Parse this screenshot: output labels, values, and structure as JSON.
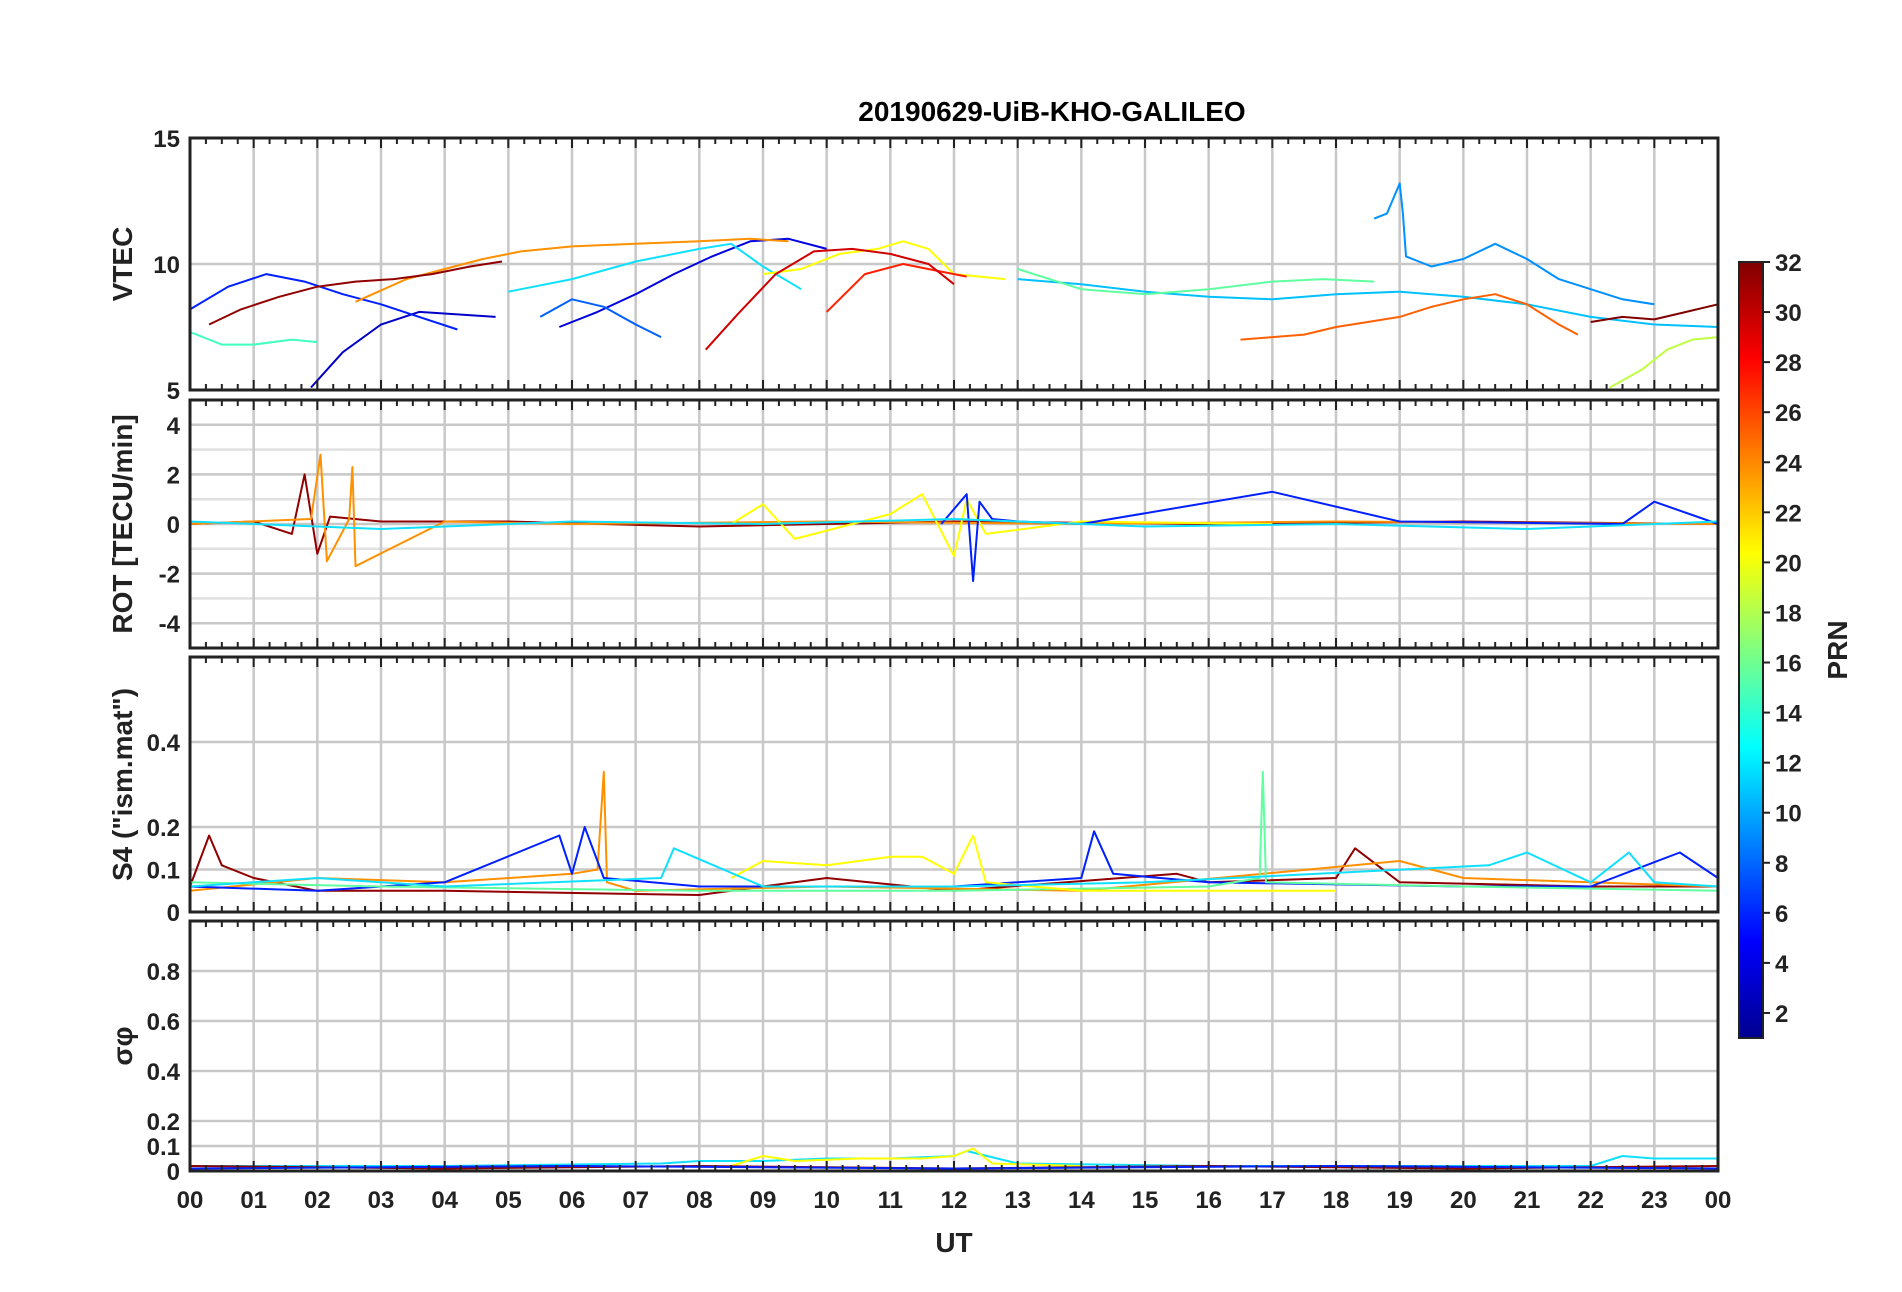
{
  "chart_data": {
    "type": "line",
    "title": "20190629-UiB-KHO-GALILEO",
    "xlabel": "UT",
    "x_tick_labels": [
      "00",
      "01",
      "02",
      "03",
      "04",
      "05",
      "06",
      "07",
      "08",
      "09",
      "10",
      "11",
      "12",
      "13",
      "14",
      "15",
      "16",
      "17",
      "18",
      "19",
      "20",
      "21",
      "22",
      "23",
      "00"
    ],
    "xlim_hours": [
      0,
      24
    ],
    "grid": true,
    "colorbar": {
      "label": "PRN",
      "colormap": "jet",
      "range": [
        1,
        32
      ],
      "tick_labels": [
        "2",
        "4",
        "6",
        "8",
        "10",
        "12",
        "14",
        "16",
        "18",
        "20",
        "22",
        "24",
        "26",
        "28",
        "30",
        "32"
      ],
      "colors": [
        "#00008f",
        "#0000ff",
        "#0080ff",
        "#00ffff",
        "#80ff80",
        "#ffff00",
        "#ff8000",
        "#ff0000",
        "#800000"
      ]
    },
    "panels": [
      {
        "ylabel": "VTEC",
        "ylim": [
          5,
          15
        ],
        "y_tick_labels": [
          "5",
          "10",
          "15"
        ],
        "y_ticks": [
          5,
          10,
          15
        ],
        "series": [
          {
            "prn": 2,
            "color": "#0000c8",
            "x": [
              1.9,
              2.4,
              3.0,
              3.6,
              4.2,
              4.8
            ],
            "y": [
              5.1,
              6.5,
              7.6,
              8.1,
              8.0,
              7.9
            ]
          },
          {
            "prn": 3,
            "color": "#0000e0",
            "x": [
              5.8,
              6.4,
              7.0,
              7.6,
              8.2,
              8.8,
              9.4,
              10.0
            ],
            "y": [
              7.5,
              8.1,
              8.8,
              9.6,
              10.3,
              10.9,
              11.0,
              10.6
            ]
          },
          {
            "prn": 5,
            "color": "#0020ff",
            "x": [
              0.0,
              0.6,
              1.2,
              1.8,
              2.4,
              3.0,
              3.6,
              4.2
            ],
            "y": [
              8.2,
              9.1,
              9.6,
              9.3,
              8.8,
              8.4,
              7.9,
              7.4
            ]
          },
          {
            "prn": 7,
            "color": "#0060ff",
            "x": [
              5.5,
              6.0,
              6.5,
              7.0,
              7.4
            ],
            "y": [
              7.9,
              8.6,
              8.3,
              7.6,
              7.1
            ]
          },
          {
            "prn": 9,
            "color": "#0090ff",
            "x": [
              18.6,
              18.8,
              19.0,
              19.05,
              19.1,
              19.5,
              20.0,
              20.5,
              21.0,
              21.5,
              22.0,
              22.5,
              23.0
            ],
            "y": [
              11.8,
              12.0,
              13.2,
              12.0,
              10.3,
              9.9,
              10.2,
              10.8,
              10.2,
              9.4,
              9.0,
              8.6,
              8.4
            ]
          },
          {
            "prn": 11,
            "color": "#00c0ff",
            "x": [
              13.0,
              14.0,
              15.0,
              16.0,
              17.0,
              18.0,
              19.0,
              20.0,
              21.0,
              22.0,
              23.0,
              24.0
            ],
            "y": [
              9.4,
              9.2,
              8.9,
              8.7,
              8.6,
              8.8,
              8.9,
              8.7,
              8.4,
              7.9,
              7.6,
              7.5
            ]
          },
          {
            "prn": 12,
            "color": "#10e0ff",
            "x": [
              5.0,
              6.0,
              7.0,
              8.0,
              8.5,
              9.0,
              9.6
            ],
            "y": [
              8.9,
              9.4,
              10.1,
              10.6,
              10.8,
              9.9,
              9.0
            ]
          },
          {
            "prn": 14,
            "color": "#40ffc0",
            "x": [
              0.0,
              0.5,
              1.0,
              1.6,
              2.0
            ],
            "y": [
              7.3,
              6.8,
              6.8,
              7.0,
              6.9
            ]
          },
          {
            "prn": 15,
            "color": "#60ffa0",
            "x": [
              13.0,
              14.0,
              15.0,
              16.0,
              17.0,
              17.8,
              18.6
            ],
            "y": [
              9.8,
              9.0,
              8.8,
              9.0,
              9.3,
              9.4,
              9.3
            ]
          },
          {
            "prn": 18,
            "color": "#c0ff40",
            "x": [
              22.3,
              22.8,
              23.2,
              23.6,
              24.0
            ],
            "y": [
              5.1,
              5.8,
              6.6,
              7.0,
              7.1
            ]
          },
          {
            "prn": 20,
            "color": "#ffff00",
            "x": [
              9.0,
              9.6,
              10.2,
              10.8,
              11.2,
              11.6,
              12.0,
              12.4,
              12.8
            ],
            "y": [
              9.6,
              9.8,
              10.4,
              10.6,
              10.9,
              10.6,
              9.6,
              9.5,
              9.4
            ]
          },
          {
            "prn": 23,
            "color": "#ff9000",
            "x": [
              2.6,
              3.4,
              4.0,
              4.6,
              5.2,
              6.0,
              7.0,
              8.0,
              8.8,
              9.4
            ],
            "y": [
              8.5,
              9.4,
              9.8,
              10.2,
              10.5,
              10.7,
              10.8,
              10.9,
              11.0,
              10.9
            ]
          },
          {
            "prn": 25,
            "color": "#ff6000",
            "x": [
              16.5,
              17.0,
              17.5,
              18.0,
              18.5,
              19.0,
              19.5,
              20.0,
              20.5,
              21.0,
              21.5,
              21.8
            ],
            "y": [
              7.0,
              7.1,
              7.2,
              7.5,
              7.7,
              7.9,
              8.3,
              8.6,
              8.8,
              8.4,
              7.6,
              7.2
            ]
          },
          {
            "prn": 27,
            "color": "#ff2000",
            "x": [
              10.0,
              10.6,
              11.2,
              11.8,
              12.2
            ],
            "y": [
              8.1,
              9.6,
              10.0,
              9.7,
              9.5
            ]
          },
          {
            "prn": 29,
            "color": "#d00000",
            "x": [
              8.1,
              8.6,
              9.2,
              9.8,
              10.4,
              11.0,
              11.6,
              12.0
            ],
            "y": [
              6.6,
              8.0,
              9.6,
              10.5,
              10.6,
              10.4,
              10.0,
              9.2
            ]
          },
          {
            "prn": 31,
            "color": "#900000",
            "x": [
              0.3,
              0.8,
              1.4,
              2.0,
              2.6,
              3.2,
              3.8,
              4.4,
              4.9
            ],
            "y": [
              7.6,
              8.2,
              8.7,
              9.1,
              9.3,
              9.4,
              9.6,
              9.9,
              10.1
            ]
          },
          {
            "prn": 32,
            "color": "#800000",
            "x": [
              22.0,
              22.5,
              23.0,
              23.5,
              24.0
            ],
            "y": [
              7.7,
              7.9,
              7.8,
              8.1,
              8.4
            ]
          }
        ]
      },
      {
        "ylabel": "ROT [TECU/min]",
        "ylim": [
          -5,
          5
        ],
        "y_tick_labels": [
          "-4",
          "-2",
          "0",
          "2",
          "4"
        ],
        "y_ticks": [
          -4,
          -2,
          0,
          2,
          4
        ],
        "series": [
          {
            "prn": 31,
            "color": "#900000",
            "x": [
              0.0,
              1.0,
              1.6,
              1.8,
              2.0,
              2.2,
              3.0,
              5.0,
              8.0,
              12.0,
              16.0,
              20.0,
              24.0
            ],
            "y": [
              0.0,
              0.1,
              -0.4,
              2.0,
              -1.2,
              0.3,
              0.1,
              0.1,
              -0.1,
              0.1,
              0.0,
              0.1,
              0.0
            ]
          },
          {
            "prn": 23,
            "color": "#ff9000",
            "x": [
              0.0,
              1.9,
              2.05,
              2.15,
              2.5,
              2.55,
              2.6,
              4.0,
              6.0,
              10.0,
              14.0,
              18.0,
              24.0
            ],
            "y": [
              0.0,
              0.2,
              2.8,
              -1.5,
              0.2,
              2.3,
              -1.7,
              0.1,
              0.0,
              0.1,
              0.0,
              0.1,
              0.0
            ]
          },
          {
            "prn": 20,
            "color": "#ffff00",
            "x": [
              8.5,
              9.0,
              9.5,
              11.0,
              11.5,
              12.0,
              12.2,
              12.5,
              14.0,
              17.0
            ],
            "y": [
              0.0,
              0.8,
              -0.6,
              0.4,
              1.2,
              -1.3,
              1.0,
              -0.4,
              0.1,
              0.0
            ]
          },
          {
            "prn": 5,
            "color": "#0020ff",
            "x": [
              11.8,
              12.2,
              12.3,
              12.4,
              12.6,
              13.0,
              14.0,
              17.0,
              19.0,
              22.5,
              23.0,
              24.0
            ],
            "y": [
              0.0,
              1.2,
              -2.3,
              0.9,
              0.2,
              0.1,
              0.0,
              1.3,
              0.1,
              0.0,
              0.9,
              0.0
            ]
          },
          {
            "prn": 12,
            "color": "#10e0ff",
            "x": [
              0.0,
              3.0,
              6.0,
              9.0,
              12.0,
              15.0,
              18.0,
              21.0,
              24.0
            ],
            "y": [
              0.1,
              -0.2,
              0.1,
              0.0,
              0.2,
              -0.1,
              0.0,
              -0.2,
              0.1
            ]
          }
        ]
      },
      {
        "ylabel": "S4 (\"ism.mat\")",
        "ylim": [
          0,
          0.6
        ],
        "y_tick_labels": [
          "0",
          "0.1",
          "0.2",
          "0.4"
        ],
        "y_ticks": [
          0,
          0.1,
          0.2,
          0.4
        ],
        "series": [
          {
            "prn": 31,
            "color": "#900000",
            "x": [
              0.0,
              0.3,
              0.5,
              1.0,
              2.0,
              4.0,
              8.0,
              10.0,
              12.0,
              15.5,
              16.0,
              18.0,
              18.3,
              19.0,
              22.0,
              23.5,
              24.0
            ],
            "y": [
              0.06,
              0.18,
              0.11,
              0.08,
              0.05,
              0.05,
              0.04,
              0.08,
              0.05,
              0.09,
              0.07,
              0.08,
              0.15,
              0.07,
              0.06,
              0.06,
              0.06
            ]
          },
          {
            "prn": 23,
            "color": "#ff9000",
            "x": [
              0.0,
              2.0,
              4.0,
              6.0,
              6.4,
              6.5,
              6.55,
              7.0,
              10.0,
              14.0,
              19.0,
              20.0,
              22.0,
              24.0
            ],
            "y": [
              0.05,
              0.08,
              0.07,
              0.09,
              0.1,
              0.33,
              0.07,
              0.05,
              0.06,
              0.05,
              0.12,
              0.08,
              0.07,
              0.06
            ]
          },
          {
            "prn": 5,
            "color": "#0020ff",
            "x": [
              0.0,
              2.0,
              4.0,
              5.8,
              6.0,
              6.2,
              6.5,
              8.0,
              12.0,
              14.0,
              14.2,
              14.5,
              16.0,
              20.0,
              22.0,
              23.4,
              24.0
            ],
            "y": [
              0.06,
              0.05,
              0.07,
              0.18,
              0.09,
              0.2,
              0.08,
              0.06,
              0.06,
              0.08,
              0.19,
              0.09,
              0.07,
              0.06,
              0.06,
              0.14,
              0.08
            ]
          },
          {
            "prn": 15,
            "color": "#60ffa0",
            "x": [
              0.0,
              3.0,
              8.0,
              12.0,
              16.0,
              16.8,
              16.85,
              16.9,
              20.0,
              24.0
            ],
            "y": [
              0.07,
              0.06,
              0.05,
              0.05,
              0.06,
              0.08,
              0.33,
              0.07,
              0.06,
              0.05
            ]
          },
          {
            "prn": 20,
            "color": "#ffff00",
            "x": [
              8.5,
              9.0,
              10.0,
              11.0,
              11.5,
              12.0,
              12.3,
              12.5,
              14.0,
              18.0
            ],
            "y": [
              0.08,
              0.12,
              0.11,
              0.13,
              0.13,
              0.09,
              0.18,
              0.07,
              0.05,
              0.05
            ]
          },
          {
            "prn": 12,
            "color": "#10e0ff",
            "x": [
              0.0,
              2.0,
              4.0,
              7.4,
              7.6,
              9.0,
              12.0,
              15.0,
              20.4,
              21.0,
              22.0,
              22.6,
              23.0,
              24.0
            ],
            "y": [
              0.06,
              0.08,
              0.06,
              0.08,
              0.15,
              0.06,
              0.06,
              0.07,
              0.11,
              0.14,
              0.07,
              0.14,
              0.07,
              0.06
            ]
          }
        ]
      },
      {
        "ylabel": "σφ",
        "ylim": [
          0,
          1
        ],
        "y_tick_labels": [
          "0",
          "0.1",
          "0.2",
          "0.4",
          "0.6",
          "0.8"
        ],
        "y_ticks": [
          0,
          0.1,
          0.2,
          0.4,
          0.6,
          0.8
        ],
        "series": [
          {
            "prn": 12,
            "color": "#10e0ff",
            "x": [
              0.0,
              4.0,
              7.4,
              8.0,
              9.0,
              10.0,
              11.0,
              12.0,
              12.2,
              13.0,
              16.0,
              20.0,
              22.0,
              22.5,
              23.0,
              24.0
            ],
            "y": [
              0.02,
              0.02,
              0.03,
              0.04,
              0.04,
              0.05,
              0.05,
              0.06,
              0.08,
              0.03,
              0.02,
              0.02,
              0.02,
              0.06,
              0.05,
              0.05
            ]
          },
          {
            "prn": 20,
            "color": "#ffff00",
            "x": [
              8.5,
              9.0,
              9.5,
              10.5,
              11.5,
              12.0,
              12.3,
              12.6,
              14.0
            ],
            "y": [
              0.02,
              0.06,
              0.04,
              0.05,
              0.05,
              0.06,
              0.09,
              0.03,
              0.02
            ]
          },
          {
            "prn": 31,
            "color": "#900000",
            "x": [
              0.0,
              4.0,
              8.0,
              12.0,
              16.0,
              20.0,
              24.0
            ],
            "y": [
              0.02,
              0.01,
              0.02,
              0.01,
              0.02,
              0.01,
              0.02
            ]
          },
          {
            "prn": 5,
            "color": "#0020ff",
            "x": [
              0.0,
              6.0,
              12.0,
              18.0,
              24.0
            ],
            "y": [
              0.01,
              0.02,
              0.01,
              0.02,
              0.01
            ]
          }
        ]
      }
    ]
  }
}
